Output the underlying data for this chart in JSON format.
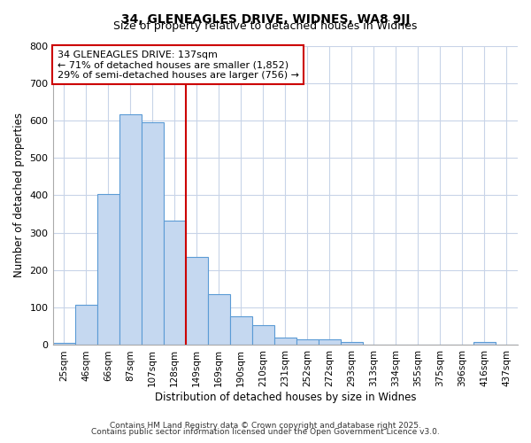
{
  "title1": "34, GLENEAGLES DRIVE, WIDNES, WA8 9JJ",
  "title2": "Size of property relative to detached houses in Widnes",
  "xlabel": "Distribution of detached houses by size in Widnes",
  "ylabel": "Number of detached properties",
  "bar_labels": [
    "25sqm",
    "46sqm",
    "66sqm",
    "87sqm",
    "107sqm",
    "128sqm",
    "149sqm",
    "169sqm",
    "190sqm",
    "210sqm",
    "231sqm",
    "252sqm",
    "272sqm",
    "293sqm",
    "313sqm",
    "334sqm",
    "355sqm",
    "375sqm",
    "396sqm",
    "416sqm",
    "437sqm"
  ],
  "bar_values": [
    7,
    108,
    403,
    617,
    595,
    333,
    235,
    137,
    78,
    52,
    20,
    15,
    15,
    8,
    0,
    0,
    0,
    0,
    0,
    8,
    0
  ],
  "bar_color": "#c5d8f0",
  "bar_edge_color": "#5b9bd5",
  "property_line_x": 5.5,
  "annotation_line1": "34 GLENEAGLES DRIVE: 137sqm",
  "annotation_line2": "← 71% of detached houses are smaller (1,852)",
  "annotation_line3": "29% of semi-detached houses are larger (756) →",
  "annotation_box_color": "#ffffff",
  "annotation_box_edge_color": "#cc0000",
  "line_color": "#cc0000",
  "ylim": [
    0,
    800
  ],
  "yticks": [
    0,
    100,
    200,
    300,
    400,
    500,
    600,
    700,
    800
  ],
  "plot_bg_color": "#ffffff",
  "fig_bg_color": "#ffffff",
  "grid_color": "#c8d4e8",
  "footnote1": "Contains HM Land Registry data © Crown copyright and database right 2025.",
  "footnote2": "Contains public sector information licensed under the Open Government Licence v3.0."
}
